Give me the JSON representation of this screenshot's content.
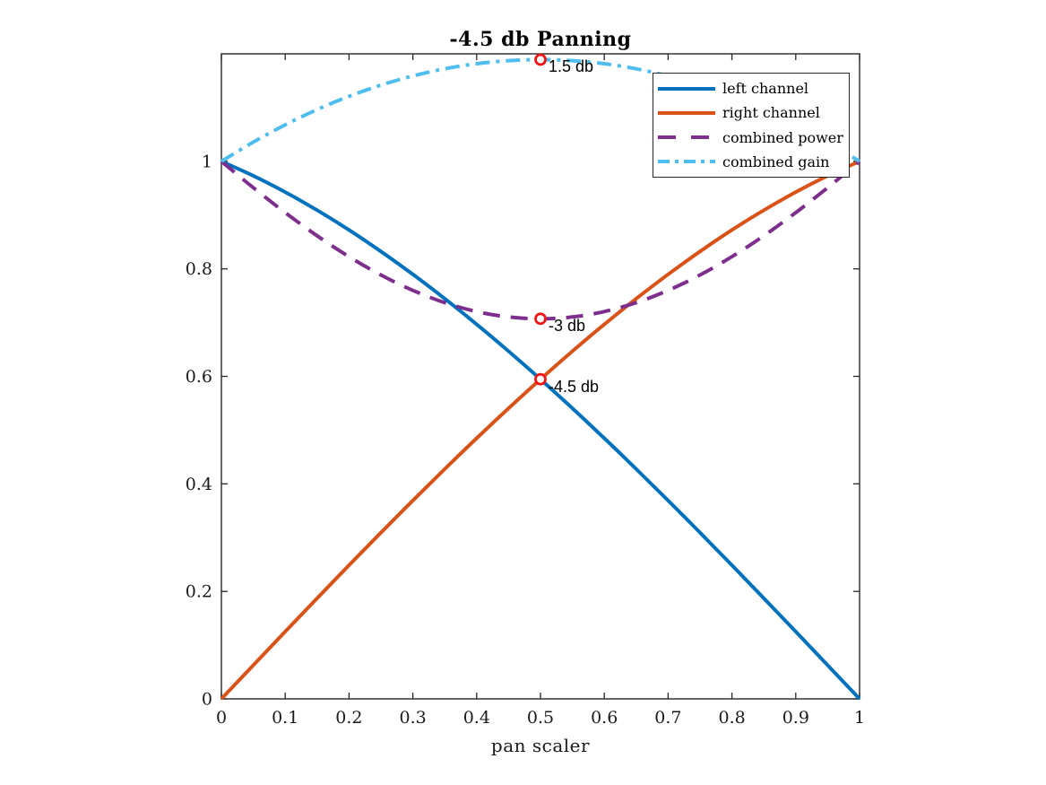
{
  "figure": {
    "background": "#FFFFFF"
  },
  "chart_data": {
    "type": "line",
    "title": "-4.5 db Panning",
    "xlabel": "pan scaler",
    "ylabel": "",
    "xlim": [
      0,
      1
    ],
    "ylim": [
      0,
      1.2
    ],
    "grid": false,
    "legend_position": "top-right",
    "axis_color": "#262626",
    "marker_color": "#F01414",
    "xticks": [
      "0",
      "0.1",
      "0.2",
      "0.3",
      "0.4",
      "0.5",
      "0.6",
      "0.7",
      "0.8",
      "0.9",
      "1"
    ],
    "xtick_values": [
      0,
      0.1,
      0.2,
      0.3,
      0.4,
      0.5,
      0.6,
      0.7,
      0.8,
      0.9,
      1
    ],
    "yticks": [
      "0",
      "0.2",
      "0.4",
      "0.6",
      "0.8",
      "1"
    ],
    "ytick_values": [
      0,
      0.2,
      0.4,
      0.6,
      0.8,
      1
    ],
    "x": [
      0,
      0.05,
      0.1,
      0.15,
      0.2,
      0.25,
      0.3,
      0.35,
      0.4,
      0.45,
      0.5,
      0.55,
      0.6,
      0.65,
      0.7,
      0.75,
      0.8,
      0.85,
      0.9,
      0.95,
      1
    ],
    "series": [
      {
        "name": "left channel",
        "color": "#0072BD",
        "style": "solid",
        "values": [
          1,
          0.9732,
          0.9428,
          0.9091,
          0.8723,
          0.8324,
          0.7897,
          0.7445,
          0.6967,
          0.6467,
          0.5946,
          0.5406,
          0.4849,
          0.4276,
          0.369,
          0.3093,
          0.2486,
          0.1871,
          0.1251,
          0.0626,
          0
        ]
      },
      {
        "name": "right channel",
        "color": "#D95319",
        "style": "solid",
        "values": [
          0,
          0.0626,
          0.1251,
          0.1871,
          0.2486,
          0.3093,
          0.369,
          0.4276,
          0.4849,
          0.5406,
          0.5946,
          0.6467,
          0.6967,
          0.7445,
          0.7897,
          0.8324,
          0.8723,
          0.9091,
          0.9428,
          0.9732,
          1
        ]
      },
      {
        "name": "combined power",
        "color": "#7E2F8E",
        "style": "dashed",
        "values": [
          1,
          0.951,
          0.9046,
          0.8615,
          0.8226,
          0.7886,
          0.7599,
          0.7371,
          0.7205,
          0.7105,
          0.7071,
          0.7105,
          0.7205,
          0.7371,
          0.7599,
          0.7886,
          0.8226,
          0.8615,
          0.9046,
          0.951,
          1
        ]
      },
      {
        "name": "combined gain",
        "color": "#4DBEEE",
        "style": "dashdot",
        "values": [
          1,
          1.0358,
          1.0679,
          1.0963,
          1.1209,
          1.1417,
          1.1588,
          1.1721,
          1.1816,
          1.1873,
          1.1892,
          1.1873,
          1.1816,
          1.1721,
          1.1588,
          1.1417,
          1.1209,
          1.0963,
          1.0679,
          1.0358,
          1
        ]
      }
    ],
    "annotations": [
      {
        "x": 0.5,
        "y": 1.1892,
        "label": "1.5 db"
      },
      {
        "x": 0.5,
        "y": 0.7071,
        "label": "-3 db"
      },
      {
        "x": 0.5,
        "y": 0.5946,
        "label": "-4.5 db"
      }
    ]
  }
}
